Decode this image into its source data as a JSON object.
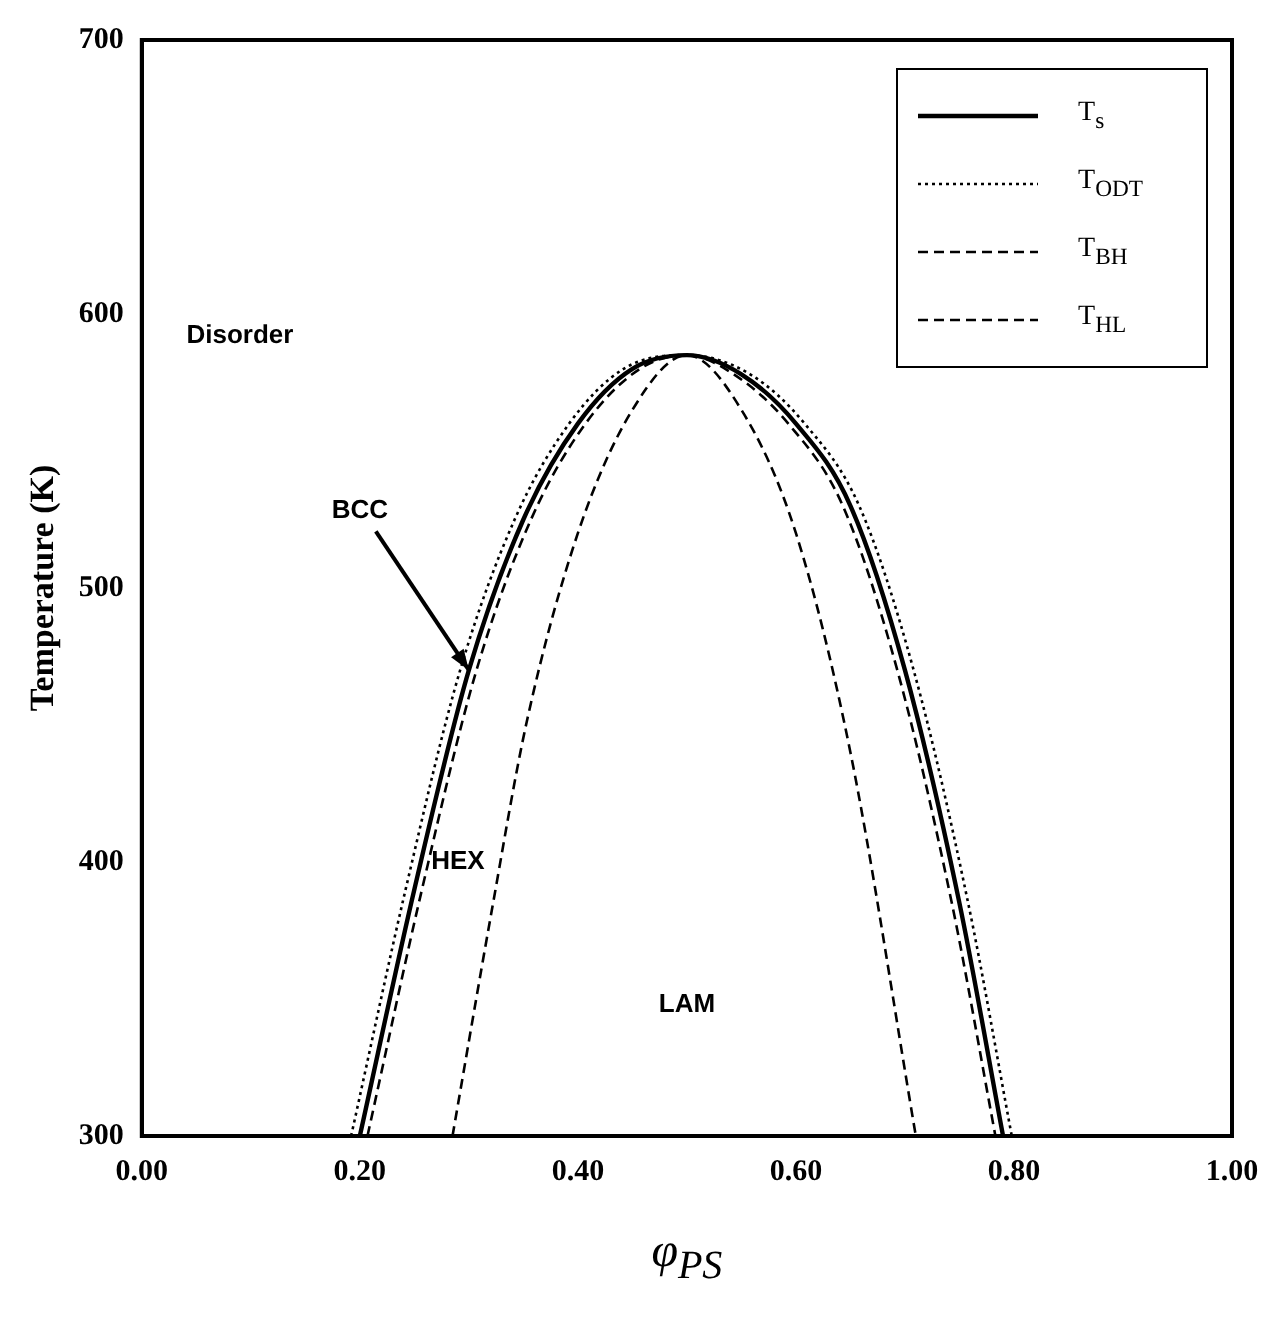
{
  "chart_data": {
    "type": "line",
    "xlabel": "φ$_{PS}$",
    "ylabel": "Temperature (K)",
    "xlim": [
      0,
      1
    ],
    "xticks": [
      {
        "value": 0,
        "label": "0.00"
      },
      {
        "value": 0.2,
        "label": "0.20"
      },
      {
        "value": 0.4,
        "label": "0.40"
      },
      {
        "value": 0.6,
        "label": "0.60"
      },
      {
        "value": 0.8,
        "label": "0.80"
      },
      {
        "value": 1,
        "label": "1.00"
      }
    ],
    "ylim": [
      300,
      700
    ],
    "yticks": [
      300,
      400,
      500,
      600,
      700
    ],
    "grid": false,
    "legend": "top right",
    "marker": "none",
    "series": [
      {
        "name": "T$_{s}$",
        "color": "#000000",
        "line_style": "solid",
        "x": [
          0.2,
          0.25,
          0.3,
          0.35,
          0.4,
          0.45,
          0.5,
          0.55,
          0.6,
          0.65,
          0.7,
          0.75,
          0.79
        ],
        "values": [
          300,
          390,
          470,
          525,
          560,
          580,
          585,
          578,
          560,
          530,
          470,
          385,
          300
        ]
      },
      {
        "name": "T$_{ODT}$",
        "color": "#000000",
        "line_style": "dotted",
        "x": [
          0.192,
          0.242,
          0.292,
          0.342,
          0.392,
          0.442,
          0.5,
          0.558,
          0.608,
          0.658,
          0.708,
          0.758,
          0.798
        ],
        "values": [
          300,
          390,
          470,
          525,
          560,
          580,
          585,
          578,
          560,
          530,
          470,
          385,
          300
        ]
      },
      {
        "name": "T$_{BH}$",
        "color": "#000000",
        "line_style": "dashed",
        "x": [
          0.207,
          0.257,
          0.307,
          0.357,
          0.407,
          0.457,
          0.5,
          0.543,
          0.593,
          0.643,
          0.693,
          0.743,
          0.783
        ],
        "values": [
          300,
          390,
          470,
          525,
          560,
          580,
          585,
          578,
          560,
          530,
          470,
          385,
          300
        ]
      },
      {
        "name": "T$_{HL}$",
        "color": "#000000",
        "line_style": "dashed",
        "x": [
          0.285,
          0.32,
          0.353,
          0.4,
          0.45,
          0.5,
          0.55,
          0.6,
          0.65,
          0.71
        ],
        "values": [
          300,
          380,
          451,
          520,
          565,
          585,
          565,
          520,
          440,
          300
        ]
      }
    ],
    "annotations": [
      "Disorder",
      {
        "text": "BCC",
        "x": 0.3,
        "y": 470
      },
      "HEX",
      "LAM"
    ]
  }
}
